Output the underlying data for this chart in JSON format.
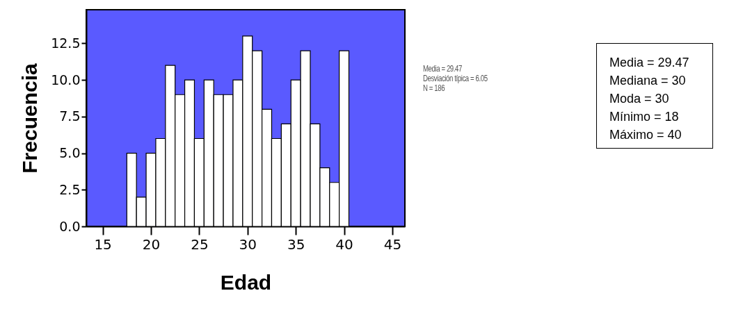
{
  "chart_data": {
    "type": "histogram",
    "xlabel": "Edad",
    "ylabel": "Frecuencia",
    "bins": [
      17.5,
      18.5,
      19.5,
      20.5,
      21.5,
      22.5,
      23.5,
      24.5,
      25.5,
      26.5,
      27.5,
      28.5,
      29.5,
      30.5,
      31.5,
      32.5,
      33.5,
      34.5,
      35.5,
      36.5,
      37.5,
      38.5,
      39.5,
      40.5
    ],
    "values": [
      5,
      2,
      5,
      6,
      11,
      9,
      10,
      6,
      10,
      9,
      9,
      10,
      13,
      12,
      8,
      6,
      7,
      10,
      12,
      7,
      4,
      3,
      12
    ],
    "color": "#ffffff",
    "xlim": [
      13.3,
      46.3
    ],
    "xticks": [
      15,
      20,
      25,
      30,
      35,
      40,
      45
    ],
    "ylim": [
      0,
      14.8
    ],
    "yticks": [
      {
        "value": 0,
        "label": "0.0"
      },
      2.5,
      {
        "value": 5,
        "label": "5.0"
      },
      7.5,
      {
        "value": 10,
        "label": "10.0"
      },
      12.5
    ],
    "grid": false,
    "annotations": [
      "Media = 29.47\nDesviación típica = 6.05\nN = 186",
      "Media = 29.47\nMediana = 30\nModa = 30\nMínimo = 18\nMáximo = 40"
    ]
  }
}
